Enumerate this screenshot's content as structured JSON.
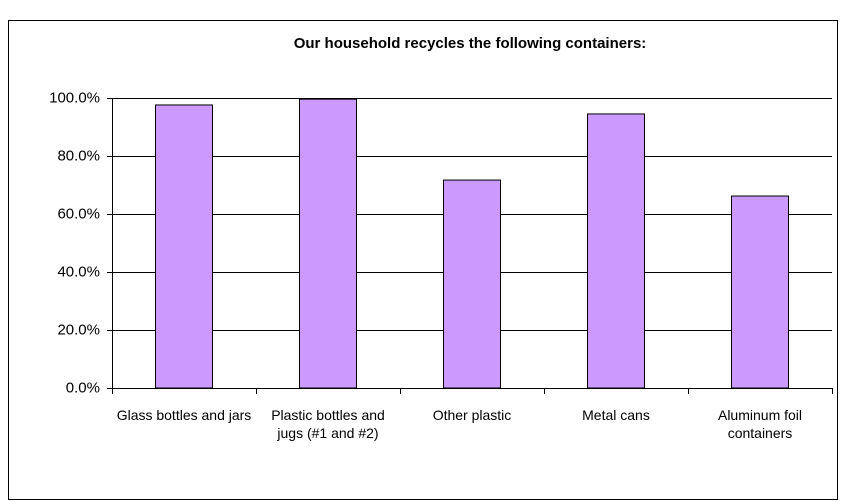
{
  "chart_data": {
    "type": "bar",
    "title": "Our household recycles the following containers:",
    "categories": [
      "Glass bottles and jars",
      "Plastic bottles and jugs (#1 and #2)",
      "Other plastic",
      "Metal cans",
      "Aluminum foil containers"
    ],
    "values": [
      97.6,
      99.6,
      71.7,
      94.5,
      66.2
    ],
    "color": "#cc99ff",
    "ylim": [
      0,
      100
    ],
    "yticks": [
      {
        "value": 0,
        "label": "0.0%"
      },
      {
        "value": 20,
        "label": "20.0%"
      },
      {
        "value": 40,
        "label": "40.0%"
      },
      {
        "value": 60,
        "label": "60.0%"
      },
      {
        "value": 80,
        "label": "80.0%"
      },
      {
        "value": 100,
        "label": "100.0%"
      }
    ],
    "grid": true
  }
}
